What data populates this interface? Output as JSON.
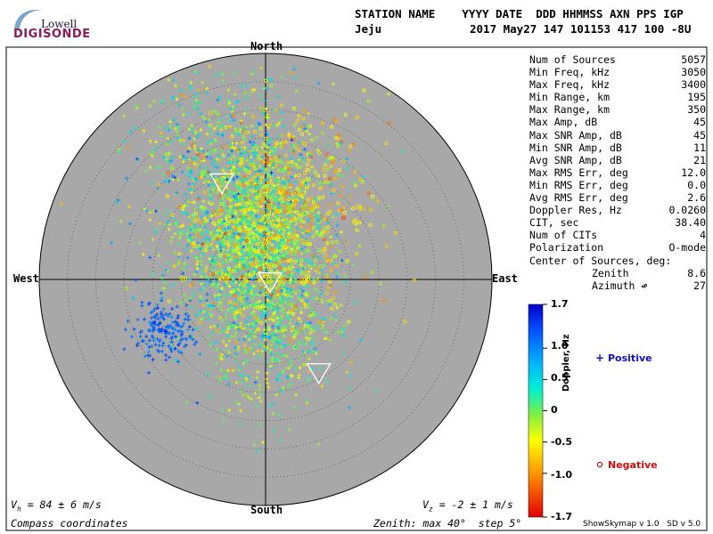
{
  "logo": {
    "line1": "Lowell",
    "line2": "DIGISONDE"
  },
  "header": {
    "labels": "STATION NAME    YYYY DATE  DDD HHMMSS AXN PPS IGP",
    "station": "Jeju",
    "values": "2017 May27 147 101153 417 100 -8U"
  },
  "stats": [
    {
      "label": "Num of Sources",
      "value": "5057"
    },
    {
      "label": "Min Freq, kHz",
      "value": "3050"
    },
    {
      "label": "Max Freq, kHz",
      "value": "3400"
    },
    {
      "label": "Min Range, km",
      "value": "195"
    },
    {
      "label": "Max Range, km",
      "value": "350"
    },
    {
      "label": "Max Amp, dB",
      "value": "45"
    },
    {
      "label": "Max SNR Amp, dB",
      "value": "45"
    },
    {
      "label": "Min SNR Amp, dB",
      "value": "11"
    },
    {
      "label": "Avg SNR Amp, dB",
      "value": "21"
    },
    {
      "label": "Max RMS Err, deg",
      "value": "12.0"
    },
    {
      "label": "Min RMS Err, deg",
      "value": "0.0"
    },
    {
      "label": "Avg RMS Err, deg",
      "value": "2.6"
    },
    {
      "label": "Doppler Res, Hz",
      "value": "0.0260"
    },
    {
      "label": "CIT, sec",
      "value": "38.40"
    },
    {
      "label": "Num of CITs",
      "value": "4"
    },
    {
      "label": "Polarization",
      "value": "O-mode"
    }
  ],
  "center": {
    "label": "Center of Sources, deg:",
    "zenith_label": "Zenith",
    "zenith_value": "8.6",
    "azimuth_label": "Azimuth ↫",
    "azimuth_value": "27"
  },
  "compass": {
    "north": "North",
    "south": "South",
    "east": "East",
    "west": "West"
  },
  "footer": {
    "vh": "V",
    "vh_sub": "h",
    "vh_rest": " = 84 ± 6 m/s",
    "vz": "V",
    "vz_sub": "z",
    "vz_rest": " = -2 ± 1 m/s",
    "coords": "Compass coordinates",
    "zenith": "Zenith: max 40°  step 5°",
    "version": "ShowSkymap v 1.0   SD v 5.0"
  },
  "colorbar": {
    "title": "Doppler, Hz",
    "ticks": [
      "1.7",
      "1.0",
      "0.5",
      "0",
      "-0.5",
      "-1.0",
      "-1.7"
    ],
    "tick_values": [
      1.7,
      1.0,
      0.5,
      0,
      -0.5,
      -1.0,
      -1.7
    ],
    "range": [
      -1.7,
      1.7
    ]
  },
  "legend": {
    "positive": "Positive",
    "positive_color": "#1010c0",
    "negative": "Negative",
    "negative_color": "#cc1010"
  },
  "chart_data": {
    "type": "scatter",
    "coordinate_system": "polar skymap (zenith angle / azimuth, compass coordinates)",
    "zenith_max_deg": 40,
    "zenith_step_deg": 5,
    "background": "#a8a8a8",
    "clusters": [
      {
        "name": "",
        "marker": "+",
        "count": 1400,
        "center_east_deg": -3,
        "center_north_deg": 9,
        "spread_east_deg": 6,
        "spread_north_deg": 8,
        "doppler_mean": 0.05,
        "doppler_sd": 0.45
      },
      {
        "name": "",
        "marker": "+",
        "count": 900,
        "center_east_deg": 0.5,
        "center_north_deg": -4,
        "spread_east_deg": 6,
        "spread_north_deg": 9,
        "doppler_mean": 0.05,
        "doppler_sd": 0.35
      },
      {
        "name": "",
        "marker": "o",
        "count": 700,
        "center_east_deg": 2,
        "center_north_deg": 12,
        "spread_east_deg": 8,
        "spread_north_deg": 9,
        "doppler_mean": -0.6,
        "doppler_sd": 0.35
      },
      {
        "name": "",
        "marker": "+",
        "count": 170,
        "center_east_deg": -18,
        "center_north_deg": -9,
        "spread_east_deg": 2.5,
        "spread_north_deg": 2.5,
        "doppler_mean": 1.2,
        "doppler_sd": 0.12
      },
      {
        "name": "",
        "marker": "+",
        "count": 500,
        "center_east_deg": -8,
        "center_north_deg": 22,
        "spread_east_deg": 9,
        "spread_north_deg": 9,
        "doppler_mean": 0.15,
        "doppler_sd": 0.5
      }
    ],
    "center_markers": [
      {
        "east_deg": -7.7,
        "north_deg": 17.1
      },
      {
        "east_deg": 0.8,
        "north_deg": -0.4
      },
      {
        "east_deg": 9.4,
        "north_deg": -16.5
      }
    ]
  }
}
